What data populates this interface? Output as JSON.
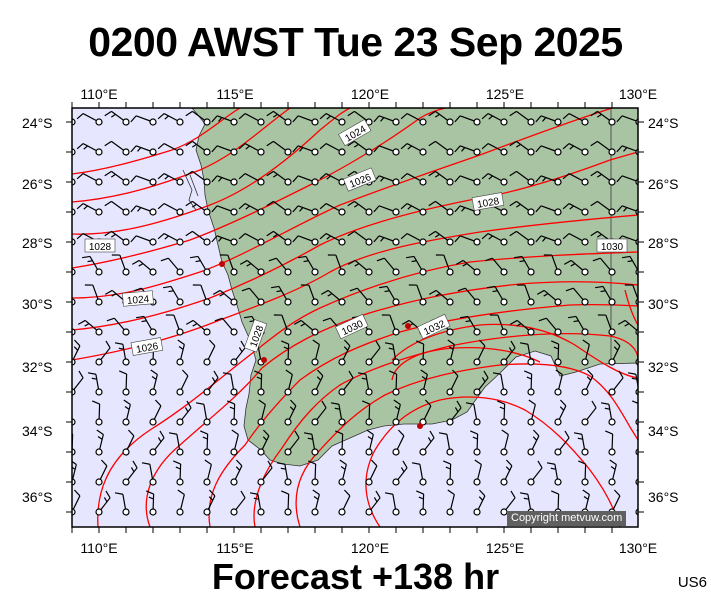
{
  "title": "0200 AWST Tue 23 Sep 2025",
  "footer": "Forecast +138 hr",
  "region_code": "US6",
  "copyright": "Copyright metvuw.com",
  "lon_labels": [
    "110°E",
    "115°E",
    "120°E",
    "125°E",
    "130°E"
  ],
  "lat_labels": [
    "24°S",
    "26°S",
    "28°S",
    "30°S",
    "32°S",
    "34°S",
    "36°S"
  ],
  "isobar_labels": [
    "1024",
    "1026",
    "1028",
    "1030",
    "1028",
    "1024",
    "1026",
    "1028",
    "1030",
    "1032"
  ],
  "colors": {
    "ocean": "#e6e6ff",
    "land": "#a9c4a3",
    "isobar": "#ff0000",
    "barb": "#000000",
    "station_dot": "#c00000"
  },
  "icons": {
    "wind_barb": "wind-barb-icon",
    "station": "station-dot-icon"
  },
  "map_extent": {
    "lon_min": 109,
    "lon_max": 130,
    "lat_min": -37,
    "lat_max": -23.5
  },
  "chart_data": {
    "type": "weather-map",
    "field": "mean sea level pressure (hPa) and wind barbs",
    "isobars_hPa": [
      1020,
      1022,
      1024,
      1026,
      1028,
      1030,
      1032
    ],
    "high_pressure_region": "inland southwest Australia"
  }
}
